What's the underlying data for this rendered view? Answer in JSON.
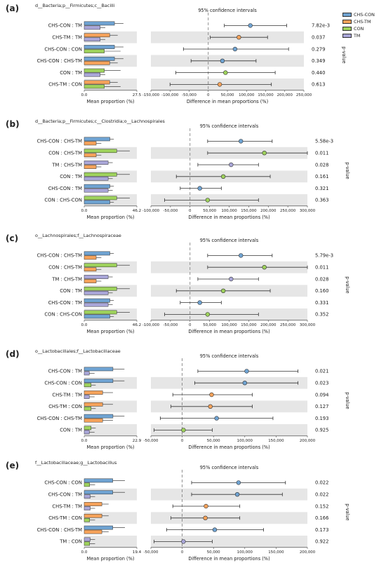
{
  "panels": [
    {
      "letter": "(a)",
      "title": "d__Bacteria;p__Firmicutes;c__Bacilli",
      "ci_title": "95% confidence intervals",
      "left_xlabel": "Mean proportion (%)",
      "right_xlabel": "Difference in mean proportions (%)",
      "pvalue_label": "p-value",
      "left_max": 27.5,
      "left_ticks": [
        "0.0",
        "27.5"
      ],
      "x_ticks": [
        "-150,000",
        "-100,000",
        "-50,000",
        "0",
        "50,000",
        "100,000",
        "150,000",
        "200,000",
        "250,000"
      ],
      "x_ticks_num": [
        -150000,
        -100000,
        -50000,
        0,
        50000,
        100000,
        150000,
        200000,
        250000
      ],
      "rows": [
        {
          "label": "CHS-CON : TM",
          "g1": "CHS-CON",
          "g2": "TM",
          "m1": 15.8,
          "e1": 20.5,
          "m2": 8.3,
          "e2": 11.0,
          "diff": 110000,
          "ci": [
            42000,
            205000
          ],
          "pvalue": "7.82e-3"
        },
        {
          "label": "CHS-TM : TM",
          "g1": "CHS-TM",
          "g2": "TM",
          "m1": 13.3,
          "e1": 17.5,
          "m2": 8.3,
          "e2": 11.0,
          "diff": 80000,
          "ci": [
            5000,
            155000
          ],
          "pvalue": "0.037"
        },
        {
          "label": "CHS-CON : CON",
          "g1": "CHS-CON",
          "g2": "CON",
          "m1": 15.8,
          "e1": 20.5,
          "m2": 10.5,
          "e2": 19.0,
          "diff": 70000,
          "ci": [
            -65000,
            210000
          ],
          "pvalue": "0.279"
        },
        {
          "label": "CHS-CON : CHS-TM",
          "g1": "CHS-CON",
          "g2": "CHS-TM",
          "m1": 15.8,
          "e1": 20.5,
          "m2": 13.3,
          "e2": 17.5,
          "diff": 37000,
          "ci": [
            -45000,
            125000
          ],
          "pvalue": "0.349"
        },
        {
          "label": "CON : TM",
          "g1": "CON",
          "g2": "TM",
          "m1": 10.5,
          "e1": 19.0,
          "m2": 8.3,
          "e2": 11.0,
          "diff": 45000,
          "ci": [
            -85000,
            175000
          ],
          "pvalue": "0.440"
        },
        {
          "label": "CHS-TM : CON",
          "g1": "CHS-TM",
          "g2": "CON",
          "m1": 13.3,
          "e1": 17.5,
          "m2": 10.5,
          "e2": 19.0,
          "diff": 30000,
          "ci": [
            -100000,
            165000
          ],
          "pvalue": "0.613"
        }
      ]
    },
    {
      "letter": "(b)",
      "title": "d__Bacteria;p__Firmicutes;c__Clostridia;o__Lachnospirales",
      "ci_title": "95% confidence intervals",
      "left_xlabel": "Mean proportion (%)",
      "right_xlabel": "Difference in mean proportions (%)",
      "pvalue_label": "p-value",
      "left_max": 46.2,
      "left_ticks": [
        "0.0",
        "46.2"
      ],
      "x_ticks": [
        "-100,000",
        "-50,000",
        "0",
        "50,000",
        "100,000",
        "150,000",
        "200,000",
        "250,000",
        "300,000"
      ],
      "x_ticks_num": [
        -100000,
        -50000,
        0,
        50000,
        100000,
        150000,
        200000,
        250000,
        300000
      ],
      "rows": [
        {
          "label": "CHS-CON : CHS-TM",
          "g1": "CHS-CON",
          "g2": "CHS-TM",
          "m1": 22.5,
          "e1": 26.0,
          "m2": 10.5,
          "e2": 15.0,
          "diff": 130000,
          "ci": [
            45000,
            210000
          ],
          "pvalue": "5.58e-3"
        },
        {
          "label": "CON : CHS-TM",
          "g1": "CON",
          "g2": "CHS-TM",
          "m1": 28.5,
          "e1": 40.0,
          "m2": 10.5,
          "e2": 15.0,
          "diff": 190000,
          "ci": [
            45000,
            300000
          ],
          "pvalue": "0.011"
        },
        {
          "label": "TM : CHS-TM",
          "g1": "TM",
          "g2": "CHS-TM",
          "m1": 21.0,
          "e1": 25.0,
          "m2": 10.5,
          "e2": 15.0,
          "diff": 105000,
          "ci": [
            20000,
            175000
          ],
          "pvalue": "0.028"
        },
        {
          "label": "CON : TM",
          "g1": "CON",
          "g2": "TM",
          "m1": 28.5,
          "e1": 40.0,
          "m2": 21.0,
          "e2": 25.0,
          "diff": 85000,
          "ci": [
            -35000,
            205000
          ],
          "pvalue": "0.161"
        },
        {
          "label": "CHS-CON : TM",
          "g1": "CHS-CON",
          "g2": "TM",
          "m1": 22.5,
          "e1": 26.0,
          "m2": 21.0,
          "e2": 25.0,
          "diff": 25000,
          "ci": [
            -25000,
            80000
          ],
          "pvalue": "0.321"
        },
        {
          "label": "CON : CHS-CON",
          "g1": "CON",
          "g2": "CHS-CON",
          "m1": 28.5,
          "e1": 40.0,
          "m2": 22.5,
          "e2": 26.0,
          "diff": 45000,
          "ci": [
            -65000,
            175000
          ],
          "pvalue": "0.363"
        }
      ]
    },
    {
      "letter": "(c)",
      "title": "o__Lachnospirales;f__Lachnospiraceae",
      "ci_title": "95% confidence intervals",
      "left_xlabel": "Mean proportion (%)",
      "right_xlabel": "Difference in mean proportions (%)",
      "pvalue_label": "p-value",
      "left_max": 46.2,
      "left_ticks": [
        "0.0",
        "46.2"
      ],
      "x_ticks": [
        "-100,000",
        "-50,000",
        "0",
        "50,000",
        "100,000",
        "150,000",
        "200,000",
        "250,000",
        "300,000"
      ],
      "x_ticks_num": [
        -100000,
        -50000,
        0,
        50000,
        100000,
        150000,
        200000,
        250000,
        300000
      ],
      "rows": [
        {
          "label": "CHS-CON : CHS-TM",
          "g1": "CHS-CON",
          "g2": "CHS-TM",
          "m1": 22.5,
          "e1": 26.0,
          "m2": 10.5,
          "e2": 15.0,
          "diff": 130000,
          "ci": [
            45000,
            210000
          ],
          "pvalue": "5.79e-3"
        },
        {
          "label": "CON : CHS-TM",
          "g1": "CON",
          "g2": "CHS-TM",
          "m1": 28.5,
          "e1": 40.0,
          "m2": 10.5,
          "e2": 15.0,
          "diff": 190000,
          "ci": [
            45000,
            300000
          ],
          "pvalue": "0.011"
        },
        {
          "label": "TM : CHS-TM",
          "g1": "TM",
          "g2": "CHS-TM",
          "m1": 21.0,
          "e1": 25.0,
          "m2": 10.5,
          "e2": 15.0,
          "diff": 105000,
          "ci": [
            20000,
            175000
          ],
          "pvalue": "0.028"
        },
        {
          "label": "CON : TM",
          "g1": "CON",
          "g2": "TM",
          "m1": 28.5,
          "e1": 40.0,
          "m2": 21.0,
          "e2": 25.0,
          "diff": 85000,
          "ci": [
            -35000,
            205000
          ],
          "pvalue": "0.160"
        },
        {
          "label": "CHS-CON : TM",
          "g1": "CHS-CON",
          "g2": "TM",
          "m1": 22.5,
          "e1": 26.0,
          "m2": 21.0,
          "e2": 25.0,
          "diff": 25000,
          "ci": [
            -25000,
            80000
          ],
          "pvalue": "0.331"
        },
        {
          "label": "CON : CHS-CON",
          "g1": "CON",
          "g2": "CHS-CON",
          "m1": 28.5,
          "e1": 40.0,
          "m2": 22.5,
          "e2": 26.0,
          "diff": 45000,
          "ci": [
            -65000,
            175000
          ],
          "pvalue": "0.352"
        }
      ]
    },
    {
      "letter": "(d)",
      "title": "o__Lactobacillales;f__Lactobacillaceae",
      "ci_title": "95% confidence intervals",
      "left_xlabel": "Mean proportion (%)",
      "right_xlabel": "Difference in mean proportions (%)",
      "pvalue_label": "p-value",
      "left_max": 22.9,
      "left_ticks": [
        "0.0",
        "22.9"
      ],
      "x_ticks": [
        "-50,000",
        "0",
        "50,000",
        "100,000",
        "150,000",
        "200,000"
      ],
      "x_ticks_num": [
        -50000,
        0,
        50000,
        100000,
        150000,
        200000
      ],
      "rows": [
        {
          "label": "CHS-CON : TM",
          "g1": "CHS-CON",
          "g2": "TM",
          "m1": 12.5,
          "e1": 17.5,
          "m2": 2.2,
          "e2": 4.5,
          "diff": 103000,
          "ci": [
            25000,
            185000
          ],
          "pvalue": "0.021"
        },
        {
          "label": "CHS-CON : CON",
          "g1": "CHS-CON",
          "g2": "CON",
          "m1": 12.5,
          "e1": 17.5,
          "m2": 3.0,
          "e2": 5.0,
          "diff": 100000,
          "ci": [
            20000,
            185000
          ],
          "pvalue": "0.023"
        },
        {
          "label": "CHS-TM : TM",
          "g1": "CHS-TM",
          "g2": "TM",
          "m1": 8.0,
          "e1": 12.5,
          "m2": 2.2,
          "e2": 4.5,
          "diff": 47000,
          "ci": [
            -15000,
            112000
          ],
          "pvalue": "0.094"
        },
        {
          "label": "CHS-TM : CON",
          "g1": "CHS-TM",
          "g2": "CON",
          "m1": 8.0,
          "e1": 12.5,
          "m2": 3.0,
          "e2": 5.0,
          "diff": 45000,
          "ci": [
            -18000,
            112000
          ],
          "pvalue": "0.127"
        },
        {
          "label": "CHS-CON : CHS-TM",
          "g1": "CHS-CON",
          "g2": "CHS-TM",
          "m1": 12.5,
          "e1": 17.5,
          "m2": 8.0,
          "e2": 12.5,
          "diff": 55000,
          "ci": [
            -35000,
            145000
          ],
          "pvalue": "0.193"
        },
        {
          "label": "CON : TM",
          "g1": "CON",
          "g2": "TM",
          "m1": 3.0,
          "e1": 5.0,
          "m2": 2.2,
          "e2": 4.5,
          "diff": 2000,
          "ci": [
            -45000,
            48000
          ],
          "pvalue": "0.925"
        }
      ]
    },
    {
      "letter": "(e)",
      "title": "f__Lactobacillaceae;g__Lactobacillus",
      "ci_title": "95% confidence intervals",
      "left_xlabel": "Mean proportion (%)",
      "right_xlabel": "Difference in mean proportions (%)",
      "pvalue_label": "p-value",
      "left_max": 19.4,
      "left_ticks": [
        "0.0",
        "19.4"
      ],
      "x_ticks": [
        "-50,000",
        "0",
        "50,000",
        "100,000",
        "150,000",
        "200,000"
      ],
      "x_ticks_num": [
        -50000,
        0,
        50000,
        100000,
        150000,
        200000
      ],
      "rows": [
        {
          "label": "CHS-CON : CON",
          "g1": "CHS-CON",
          "g2": "CON",
          "m1": 10.5,
          "e1": 15.0,
          "m2": 2.0,
          "e2": 4.0,
          "diff": 90000,
          "ci": [
            15000,
            165000
          ],
          "pvalue": "0.022"
        },
        {
          "label": "CHS-CON : TM",
          "g1": "CHS-CON",
          "g2": "TM",
          "m1": 10.5,
          "e1": 15.0,
          "m2": 2.2,
          "e2": 4.0,
          "diff": 88000,
          "ci": [
            15000,
            160000
          ],
          "pvalue": "0.022"
        },
        {
          "label": "CHS-TM : TM",
          "g1": "CHS-TM",
          "g2": "TM",
          "m1": 6.5,
          "e1": 9.0,
          "m2": 2.2,
          "e2": 4.0,
          "diff": 38000,
          "ci": [
            -15000,
            92000
          ],
          "pvalue": "0.152"
        },
        {
          "label": "CHS-TM : CON",
          "g1": "CHS-TM",
          "g2": "CON",
          "m1": 6.5,
          "e1": 9.0,
          "m2": 2.0,
          "e2": 4.0,
          "diff": 37000,
          "ci": [
            -18000,
            92000
          ],
          "pvalue": "0.166"
        },
        {
          "label": "CHS-CON : CHS-TM",
          "g1": "CHS-CON",
          "g2": "CHS-TM",
          "m1": 10.5,
          "e1": 15.0,
          "m2": 6.5,
          "e2": 9.0,
          "diff": 52000,
          "ci": [
            -25000,
            130000
          ],
          "pvalue": "0.173"
        },
        {
          "label": "TM : CON",
          "g1": "TM",
          "g2": "CON",
          "m1": 2.2,
          "e1": 4.0,
          "m2": 2.0,
          "e2": 4.0,
          "diff": 2000,
          "ci": [
            -45000,
            48000
          ],
          "pvalue": "0.922"
        }
      ]
    }
  ],
  "legend": [
    {
      "name": "CHS-CON",
      "color": "#6fa3d2"
    },
    {
      "name": "CHS-TM",
      "color": "#f5a25a"
    },
    {
      "name": "CON",
      "color": "#9ed25c"
    },
    {
      "name": "TM",
      "color": "#a9a6d8"
    }
  ],
  "chart_data": [
    {
      "type": "bar",
      "title": "d__Bacteria;p__Firmicutes;c__Bacilli",
      "xlabel": "Difference in mean proportions (%)",
      "categories": [
        "CHS-CON : TM",
        "CHS-TM : TM",
        "CHS-CON : CON",
        "CHS-CON : CHS-TM",
        "CON : TM",
        "CHS-TM : CON"
      ],
      "differences": [
        110000,
        80000,
        70000,
        37000,
        45000,
        30000
      ],
      "p_values": [
        "7.82e-3",
        "0.037",
        "0.279",
        "0.349",
        "0.440",
        "0.613"
      ],
      "xlim": [
        -150000,
        250000
      ]
    },
    {
      "type": "bar",
      "title": "d__Bacteria;p__Firmicutes;c__Clostridia;o__Lachnospirales",
      "xlabel": "Difference in mean proportions (%)",
      "categories": [
        "CHS-CON : CHS-TM",
        "CON : CHS-TM",
        "TM : CHS-TM",
        "CON : TM",
        "CHS-CON : TM",
        "CON : CHS-CON"
      ],
      "differences": [
        130000,
        190000,
        105000,
        85000,
        25000,
        45000
      ],
      "p_values": [
        "5.58e-3",
        "0.011",
        "0.028",
        "0.161",
        "0.321",
        "0.363"
      ],
      "xlim": [
        -100000,
        300000
      ]
    },
    {
      "type": "bar",
      "title": "o__Lachnospirales;f__Lachnospiraceae",
      "xlabel": "Difference in mean proportions (%)",
      "categories": [
        "CHS-CON : CHS-TM",
        "CON : CHS-TM",
        "TM : CHS-TM",
        "CON : TM",
        "CHS-CON : TM",
        "CON : CHS-CON"
      ],
      "differences": [
        130000,
        190000,
        105000,
        85000,
        25000,
        45000
      ],
      "p_values": [
        "5.79e-3",
        "0.011",
        "0.028",
        "0.160",
        "0.331",
        "0.352"
      ],
      "xlim": [
        -100000,
        300000
      ]
    },
    {
      "type": "bar",
      "title": "o__Lactobacillales;f__Lactobacillaceae",
      "xlabel": "Difference in mean proportions (%)",
      "categories": [
        "CHS-CON : TM",
        "CHS-CON : CON",
        "CHS-TM : TM",
        "CHS-TM : CON",
        "CHS-CON : CHS-TM",
        "CON : TM"
      ],
      "differences": [
        103000,
        100000,
        47000,
        45000,
        55000,
        2000
      ],
      "p_values": [
        "0.021",
        "0.023",
        "0.094",
        "0.127",
        "0.193",
        "0.925"
      ],
      "xlim": [
        -50000,
        200000
      ]
    },
    {
      "type": "bar",
      "title": "f__Lactobacillaceae;g__Lactobacillus",
      "xlabel": "Difference in mean proportions (%)",
      "categories": [
        "CHS-CON : CON",
        "CHS-CON : TM",
        "CHS-TM : TM",
        "CHS-TM : CON",
        "CHS-CON : CHS-TM",
        "TM : CON"
      ],
      "differences": [
        90000,
        88000,
        38000,
        37000,
        52000,
        2000
      ],
      "p_values": [
        "0.022",
        "0.022",
        "0.152",
        "0.166",
        "0.173",
        "0.922"
      ],
      "xlim": [
        -50000,
        200000
      ]
    }
  ]
}
